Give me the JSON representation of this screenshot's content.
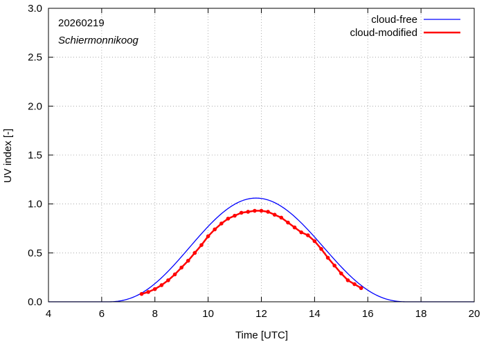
{
  "chart_data": {
    "type": "line",
    "date_label": "20260219",
    "location_label": "Schiermonnikoog",
    "xlabel": "Time  [UTC]",
    "ylabel": "UV index  [-]",
    "xlim": [
      4,
      20
    ],
    "ylim": [
      0,
      3
    ],
    "xticks": [
      4,
      6,
      8,
      10,
      12,
      14,
      16,
      18,
      20
    ],
    "yticks": [
      0.0,
      0.5,
      1.0,
      1.5,
      2.0,
      2.5,
      3.0
    ],
    "ytick_labels": [
      "0.0",
      "0.5",
      "1.0",
      "1.5",
      "2.0",
      "2.5",
      "3.0"
    ],
    "legend_position": "top-right",
    "series": [
      {
        "name": "cloud-free",
        "color": "#0000ff",
        "style": "line",
        "model": "sine-power",
        "sunrise": 6.2,
        "sunset": 17.5,
        "peak_time": 11.8,
        "peak_value": 1.06,
        "exponent": 2.4
      },
      {
        "name": "cloud-modified",
        "color": "#ff0000",
        "style": "line-points",
        "x": [
          7.5,
          7.75,
          8.0,
          8.25,
          8.5,
          8.75,
          9.0,
          9.25,
          9.5,
          9.75,
          10.0,
          10.25,
          10.5,
          10.75,
          11.0,
          11.25,
          11.5,
          11.75,
          12.0,
          12.25,
          12.5,
          12.75,
          13.0,
          13.25,
          13.5,
          13.75,
          14.0,
          14.25,
          14.5,
          14.75,
          15.0,
          15.25,
          15.5,
          15.75
        ],
        "y": [
          0.08,
          0.1,
          0.13,
          0.17,
          0.22,
          0.28,
          0.35,
          0.42,
          0.5,
          0.58,
          0.67,
          0.74,
          0.8,
          0.85,
          0.88,
          0.91,
          0.92,
          0.93,
          0.93,
          0.92,
          0.89,
          0.86,
          0.81,
          0.76,
          0.71,
          0.68,
          0.62,
          0.54,
          0.45,
          0.37,
          0.29,
          0.22,
          0.18,
          0.14
        ]
      }
    ]
  }
}
